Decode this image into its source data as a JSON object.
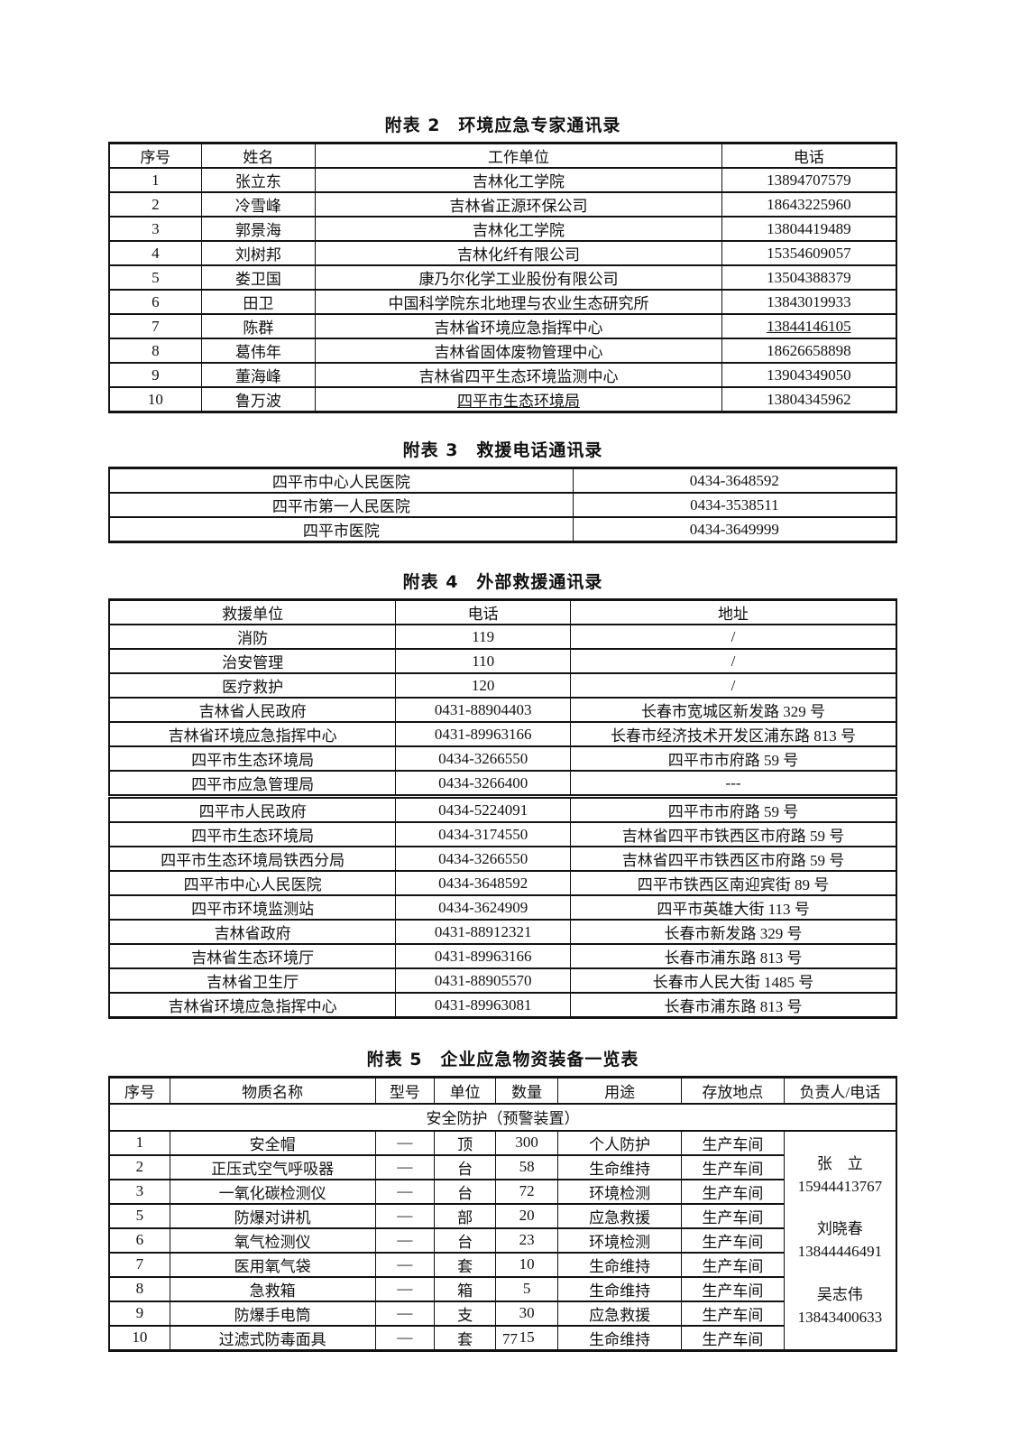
{
  "page_number": "77",
  "tables": {
    "experts": {
      "title": "附表 2　环境应急专家通讯录",
      "headers": [
        "序号",
        "姓名",
        "工作单位",
        "电话"
      ],
      "rows": [
        [
          "1",
          "张立东",
          "吉林化工学院",
          "13894707579"
        ],
        [
          "2",
          "冷雪峰",
          "吉林省正源环保公司",
          "18643225960"
        ],
        [
          "3",
          "郭景海",
          "吉林化工学院",
          "13804419489"
        ],
        [
          "4",
          "刘树邦",
          "吉林化纤有限公司",
          "15354609057"
        ],
        [
          "5",
          "娄卫国",
          "康乃尔化学工业股份有限公司",
          "13504388379"
        ],
        [
          "6",
          "田卫",
          "中国科学院东北地理与农业生态研究所",
          "13843019933"
        ],
        [
          "7",
          "陈群",
          "吉林省环境应急指挥中心",
          {
            "t": "13844146105",
            "u": true
          }
        ],
        [
          "8",
          "葛伟年",
          "吉林省固体废物管理中心",
          "18626658898"
        ],
        [
          "9",
          "董海峰",
          "吉林省四平生态环境监测中心",
          "13904349050"
        ],
        [
          "10",
          "鲁万波",
          {
            "t": "四平市生态环境局",
            "u": true
          },
          "13804345962"
        ]
      ]
    },
    "rescue_phones": {
      "title": "附表 3　救援电话通讯录",
      "rows": [
        [
          "四平市中心人民医院",
          "0434-3648592"
        ],
        [
          "四平市第一人民医院",
          "0434-3538511"
        ],
        [
          "四平市医院",
          "0434-3649999"
        ]
      ]
    },
    "external_rescue": {
      "title": "附表 4　外部救援通讯录",
      "headers": [
        "救援单位",
        "电话",
        "地址"
      ],
      "rows": [
        [
          "消防",
          "119",
          "/"
        ],
        [
          "治安管理",
          "110",
          "/"
        ],
        [
          "医疗救护",
          "120",
          "/"
        ],
        [
          "吉林省人民政府",
          "0431-88904403",
          "长春市宽城区新发路 329 号"
        ],
        [
          "吉林省环境应急指挥中心",
          "0431-89963166",
          "长春市经济技术开发区浦东路 813 号"
        ],
        [
          "四平市生态环境局",
          "0434-3266550",
          "四平市市府路 59 号"
        ],
        [
          "四平市应急管理局",
          "0434-3266400",
          "---"
        ],
        {
          "cls": "thick",
          "cells": [
            "四平市人民政府",
            "0434-5224091",
            "四平市市府路 59 号"
          ]
        },
        [
          "四平市生态环境局",
          "0434-3174550",
          "吉林省四平市铁西区市府路 59 号"
        ],
        [
          "四平市生态环境局铁西分局",
          "0434-3266550",
          "吉林省四平市铁西区市府路 59 号"
        ],
        [
          "四平市中心人民医院",
          "0434-3648592",
          "四平市铁西区南迎宾街 89 号"
        ],
        [
          "四平市环境监测站",
          "0434-3624909",
          "四平市英雄大街 113 号"
        ],
        [
          "吉林省政府",
          "0431-88912321",
          "长春市新发路 329 号"
        ],
        [
          "吉林省生态环境厅",
          "0431-89963166",
          "长春市浦东路 813 号"
        ],
        [
          "吉林省卫生厅",
          "0431-88905570",
          "长春市人民大街 1485 号"
        ],
        [
          "吉林省环境应急指挥中心",
          "0431-89963081",
          "长春市浦东路 813 号"
        ]
      ]
    },
    "supplies": {
      "title": "附表 5　企业应急物资装备一览表",
      "headers": [
        "序号",
        "物质名称",
        "型号",
        "单位",
        "数量",
        "用途",
        "存放地点",
        "负责人/电话"
      ],
      "group_header": "安全防护（预警装置）",
      "rows": [
        [
          "1",
          "安全帽",
          "—",
          "顶",
          "300",
          "个人防护",
          "生产车间"
        ],
        [
          "2",
          "正压式空气呼吸器",
          "—",
          "台",
          "58",
          "生命维持",
          "生产车间"
        ],
        [
          "3",
          "一氧化碳检测仪",
          "—",
          "台",
          "72",
          "环境检测",
          "生产车间"
        ],
        [
          "5",
          "防爆对讲机",
          "—",
          "部",
          "20",
          "应急救援",
          "生产车间"
        ],
        [
          "6",
          "氧气检测仪",
          "—",
          "台",
          "23",
          "环境检测",
          "生产车间"
        ],
        [
          "7",
          "医用氧气袋",
          "—",
          "套",
          "10",
          "生命维持",
          "生产车间"
        ],
        [
          "8",
          "急救箱",
          "—",
          "箱",
          "5",
          "生命维持",
          "生产车间"
        ],
        [
          "9",
          "防爆手电筒",
          "—",
          "支",
          "30",
          "应急救援",
          "生产车间"
        ],
        [
          "10",
          "过滤式防毒面具",
          "—",
          "套",
          "15",
          "生命维持",
          "生产车间"
        ]
      ],
      "contacts": [
        {
          "name": "张　立",
          "phone": "15944413767"
        },
        {
          "name": "刘晓春",
          "phone": "13844446491"
        },
        {
          "name": "吴志伟",
          "phone": "13843400633"
        }
      ]
    }
  }
}
